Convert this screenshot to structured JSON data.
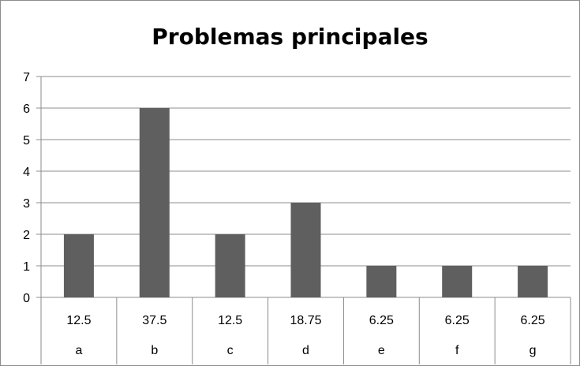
{
  "chart_data": {
    "type": "bar",
    "title": "Problemas principales",
    "categories": [
      "a",
      "b",
      "c",
      "d",
      "e",
      "f",
      "g"
    ],
    "table_row": [
      "12.5",
      "37.5",
      "12.5",
      "18.75",
      "6.25",
      "6.25",
      "6.25"
    ],
    "values": [
      2,
      6,
      2,
      3,
      1,
      1,
      1
    ],
    "ylim": [
      0,
      7
    ],
    "yticks": [
      0,
      1,
      2,
      3,
      4,
      5,
      6,
      7
    ],
    "grid": true,
    "xlabel": "",
    "ylabel": "",
    "colors": {
      "bar": "#5f5f5f",
      "grid": "#8c8c8c",
      "axis": "#8c8c8c"
    }
  }
}
